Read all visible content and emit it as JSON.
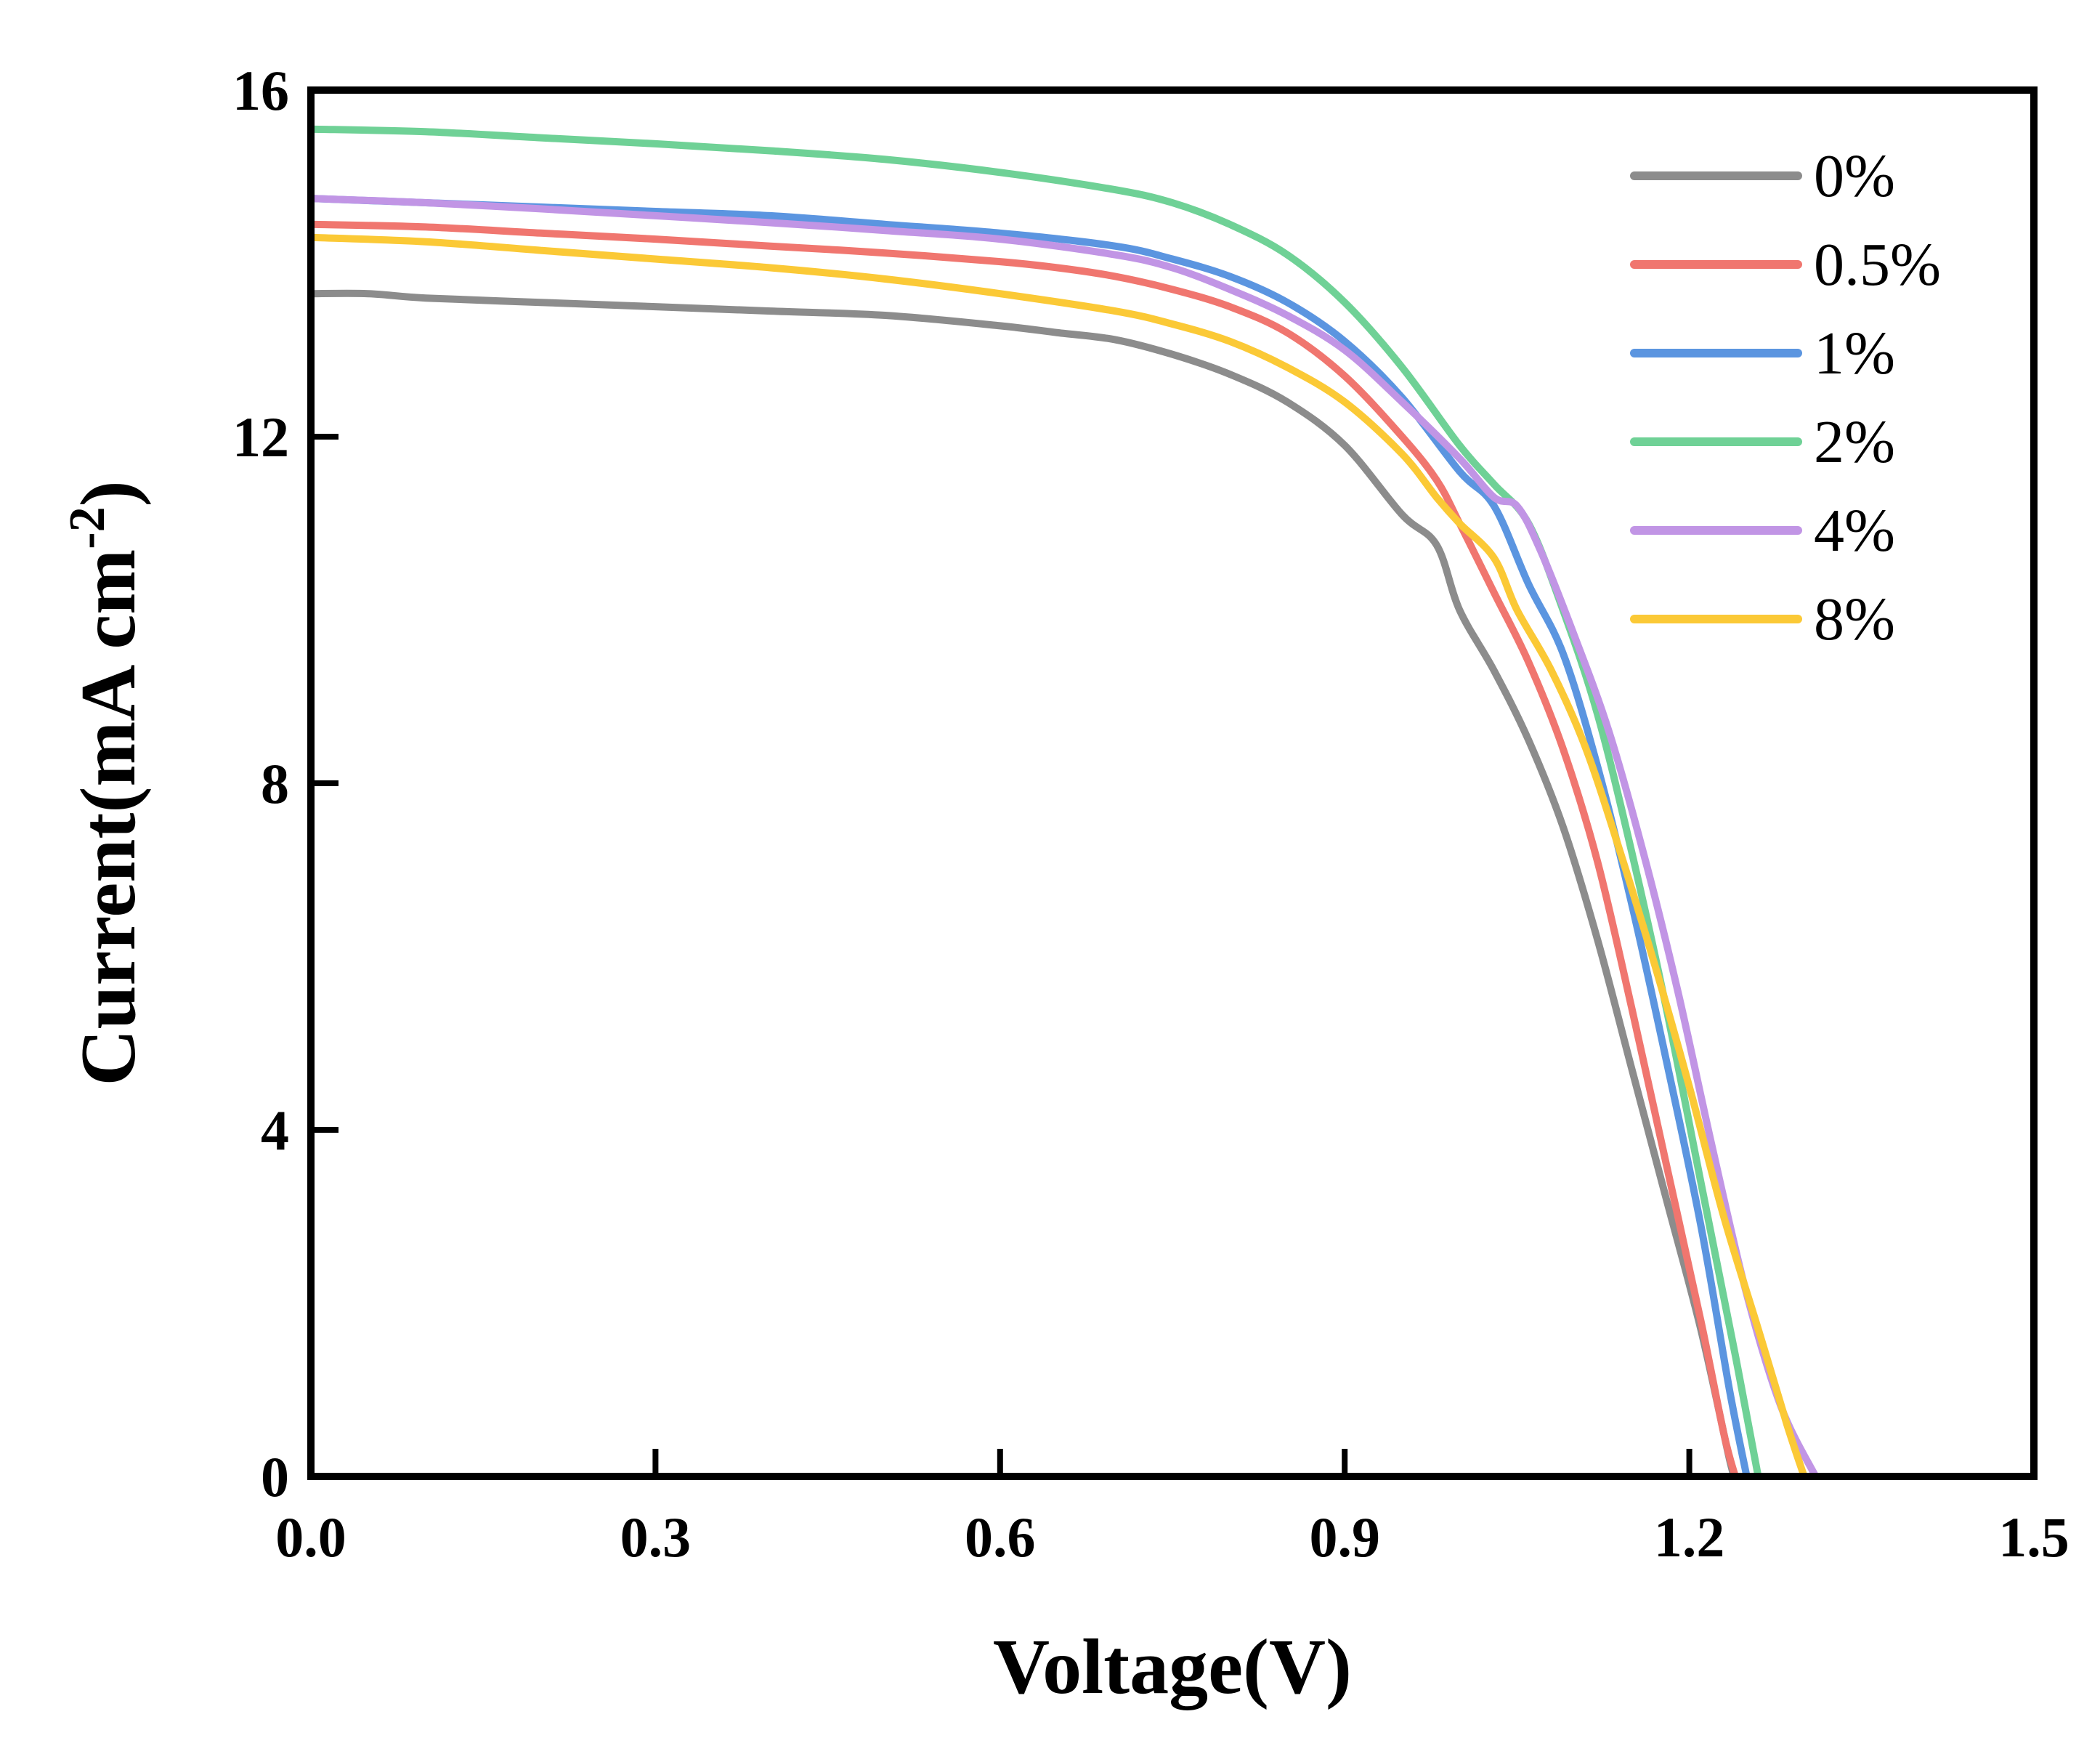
{
  "chart_data": {
    "type": "line",
    "title": "",
    "xlabel": "Voltage(V)",
    "ylabel_main": "Current(mA cm",
    "ylabel_sup": "-2",
    "ylabel_close": ")",
    "xlim": [
      0.0,
      1.5
    ],
    "ylim": [
      0,
      16
    ],
    "xticks": [
      0.0,
      0.3,
      0.6,
      0.9,
      1.2,
      1.5
    ],
    "xtick_labels": [
      "0.0",
      "0.3",
      "0.6",
      "0.9",
      "1.2",
      "1.5"
    ],
    "yticks": [
      0,
      4,
      8,
      12,
      16
    ],
    "ytick_labels": [
      "0",
      "4",
      "8",
      "12",
      "16"
    ],
    "grid": false,
    "legend_position": "top-right",
    "series": [
      {
        "name": "0%",
        "color": "#8c8c8c",
        "points": [
          [
            0,
            13.65
          ],
          [
            0.05,
            13.65
          ],
          [
            0.1,
            13.6
          ],
          [
            0.2,
            13.55
          ],
          [
            0.3,
            13.5
          ],
          [
            0.4,
            13.45
          ],
          [
            0.5,
            13.4
          ],
          [
            0.6,
            13.28
          ],
          [
            0.65,
            13.2
          ],
          [
            0.7,
            13.12
          ],
          [
            0.75,
            12.95
          ],
          [
            0.8,
            12.72
          ],
          [
            0.85,
            12.4
          ],
          [
            0.9,
            11.9
          ],
          [
            0.95,
            11.1
          ],
          [
            0.98,
            10.75
          ],
          [
            1.0,
            10.0
          ],
          [
            1.03,
            9.3
          ],
          [
            1.06,
            8.5
          ],
          [
            1.09,
            7.5
          ],
          [
            1.12,
            6.2
          ],
          [
            1.15,
            4.7
          ],
          [
            1.18,
            3.2
          ],
          [
            1.21,
            1.7
          ],
          [
            1.235,
            0.2
          ],
          [
            1.24,
            0
          ]
        ]
      },
      {
        "name": "0.5%",
        "color": "#f0766f",
        "points": [
          [
            0,
            14.45
          ],
          [
            0.1,
            14.42
          ],
          [
            0.2,
            14.35
          ],
          [
            0.3,
            14.28
          ],
          [
            0.4,
            14.2
          ],
          [
            0.5,
            14.12
          ],
          [
            0.6,
            14.02
          ],
          [
            0.65,
            13.95
          ],
          [
            0.7,
            13.85
          ],
          [
            0.75,
            13.7
          ],
          [
            0.8,
            13.5
          ],
          [
            0.85,
            13.2
          ],
          [
            0.9,
            12.7
          ],
          [
            0.95,
            12.0
          ],
          [
            0.98,
            11.5
          ],
          [
            1.0,
            11.0
          ],
          [
            1.03,
            10.2
          ],
          [
            1.06,
            9.4
          ],
          [
            1.09,
            8.4
          ],
          [
            1.12,
            7.1
          ],
          [
            1.15,
            5.4
          ],
          [
            1.18,
            3.6
          ],
          [
            1.21,
            1.8
          ],
          [
            1.23,
            0.5
          ],
          [
            1.24,
            0
          ]
        ]
      },
      {
        "name": "1%",
        "color": "#5b95e0",
        "points": [
          [
            0,
            14.75
          ],
          [
            0.1,
            14.7
          ],
          [
            0.2,
            14.65
          ],
          [
            0.3,
            14.6
          ],
          [
            0.4,
            14.55
          ],
          [
            0.5,
            14.45
          ],
          [
            0.6,
            14.35
          ],
          [
            0.7,
            14.2
          ],
          [
            0.75,
            14.05
          ],
          [
            0.8,
            13.85
          ],
          [
            0.85,
            13.55
          ],
          [
            0.9,
            13.1
          ],
          [
            0.95,
            12.45
          ],
          [
            1.0,
            11.6
          ],
          [
            1.03,
            11.2
          ],
          [
            1.06,
            10.3
          ],
          [
            1.09,
            9.5
          ],
          [
            1.12,
            8.2
          ],
          [
            1.15,
            6.6
          ],
          [
            1.18,
            4.8
          ],
          [
            1.21,
            2.9
          ],
          [
            1.235,
            1.0
          ],
          [
            1.25,
            0
          ]
        ]
      },
      {
        "name": "2%",
        "color": "#6fd196",
        "points": [
          [
            0,
            15.55
          ],
          [
            0.1,
            15.52
          ],
          [
            0.2,
            15.45
          ],
          [
            0.3,
            15.38
          ],
          [
            0.4,
            15.3
          ],
          [
            0.5,
            15.2
          ],
          [
            0.6,
            15.05
          ],
          [
            0.7,
            14.85
          ],
          [
            0.75,
            14.7
          ],
          [
            0.8,
            14.45
          ],
          [
            0.85,
            14.1
          ],
          [
            0.9,
            13.55
          ],
          [
            0.95,
            12.8
          ],
          [
            1.0,
            11.9
          ],
          [
            1.03,
            11.45
          ],
          [
            1.06,
            11.0
          ],
          [
            1.09,
            10.0
          ],
          [
            1.12,
            8.8
          ],
          [
            1.15,
            7.2
          ],
          [
            1.18,
            5.4
          ],
          [
            1.21,
            3.4
          ],
          [
            1.24,
            1.4
          ],
          [
            1.26,
            0
          ]
        ]
      },
      {
        "name": "4%",
        "color": "#c195e5",
        "points": [
          [
            0,
            14.75
          ],
          [
            0.1,
            14.7
          ],
          [
            0.2,
            14.63
          ],
          [
            0.3,
            14.55
          ],
          [
            0.4,
            14.47
          ],
          [
            0.5,
            14.38
          ],
          [
            0.6,
            14.28
          ],
          [
            0.7,
            14.1
          ],
          [
            0.75,
            13.95
          ],
          [
            0.8,
            13.7
          ],
          [
            0.85,
            13.4
          ],
          [
            0.9,
            13.0
          ],
          [
            0.95,
            12.4
          ],
          [
            1.0,
            11.75
          ],
          [
            1.03,
            11.3
          ],
          [
            1.05,
            11.2
          ],
          [
            1.07,
            10.7
          ],
          [
            1.1,
            9.7
          ],
          [
            1.13,
            8.6
          ],
          [
            1.16,
            7.2
          ],
          [
            1.19,
            5.6
          ],
          [
            1.22,
            3.8
          ],
          [
            1.25,
            2.1
          ],
          [
            1.28,
            0.8
          ],
          [
            1.31,
            0
          ]
        ]
      },
      {
        "name": "8%",
        "color": "#fbc936",
        "points": [
          [
            0,
            14.3
          ],
          [
            0.1,
            14.25
          ],
          [
            0.2,
            14.15
          ],
          [
            0.3,
            14.05
          ],
          [
            0.4,
            13.95
          ],
          [
            0.5,
            13.82
          ],
          [
            0.6,
            13.65
          ],
          [
            0.7,
            13.45
          ],
          [
            0.75,
            13.3
          ],
          [
            0.8,
            13.1
          ],
          [
            0.85,
            12.8
          ],
          [
            0.9,
            12.4
          ],
          [
            0.95,
            11.8
          ],
          [
            0.98,
            11.3
          ],
          [
            1.0,
            11.0
          ],
          [
            1.03,
            10.6
          ],
          [
            1.05,
            10.0
          ],
          [
            1.08,
            9.3
          ],
          [
            1.11,
            8.4
          ],
          [
            1.14,
            7.2
          ],
          [
            1.17,
            5.9
          ],
          [
            1.2,
            4.5
          ],
          [
            1.23,
            3.0
          ],
          [
            1.26,
            1.7
          ],
          [
            1.285,
            0.6
          ],
          [
            1.3,
            0
          ]
        ]
      }
    ]
  }
}
